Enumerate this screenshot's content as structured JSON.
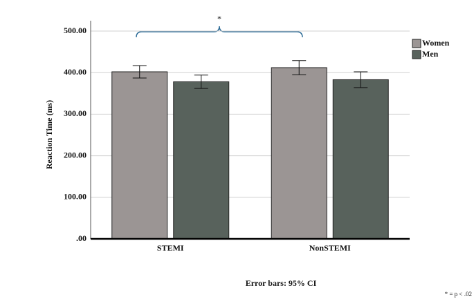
{
  "chart_data": {
    "type": "bar",
    "y_label": "Reaction Time (ms)",
    "categories": [
      "STEMI",
      "NonSTEMI"
    ],
    "series": [
      {
        "name": "Women",
        "color": "#9b9594",
        "values": [
          402,
          412
        ],
        "errors": [
          15,
          17
        ]
      },
      {
        "name": "Men",
        "color": "#58625c",
        "values": [
          378,
          383
        ],
        "errors": [
          16,
          19
        ]
      }
    ],
    "ylim": [
      0,
      500
    ],
    "yticks": [
      {
        "value": 0,
        "label": ".00"
      },
      {
        "value": 100,
        "label": "100.00"
      },
      {
        "value": 200,
        "label": "200.00"
      },
      {
        "value": 300,
        "label": "300.00"
      },
      {
        "value": 400,
        "label": "400.00"
      },
      {
        "value": 500,
        "label": "500.00"
      }
    ],
    "grid": true,
    "legend": "top-right",
    "significance_mark": "*",
    "caption": "Error bars: 95% CI",
    "footnote": "* = p < .02"
  }
}
